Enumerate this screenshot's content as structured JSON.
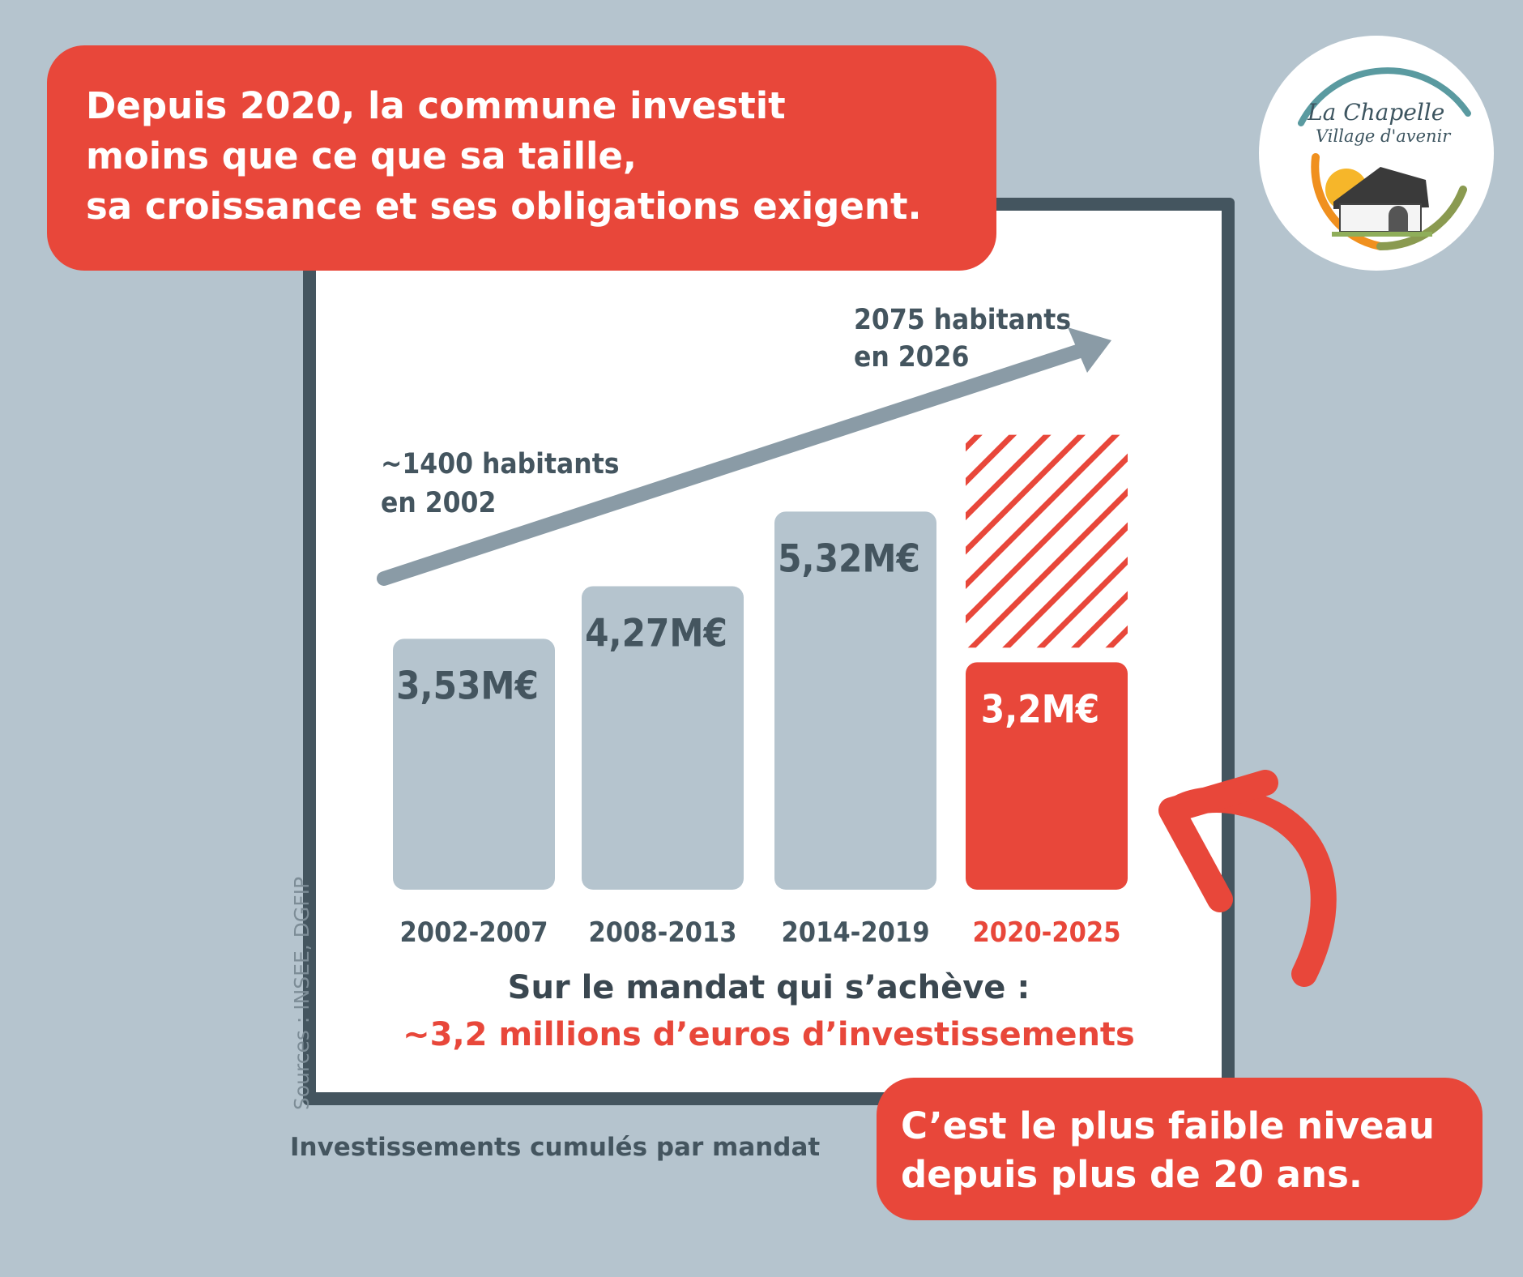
{
  "headline": {
    "lines": [
      "Depuis 2020, la commune investit",
      "moins que ce que sa taille,",
      "sa croissance et ses obligations exigent."
    ]
  },
  "logo": {
    "line1": "La Chapelle",
    "line2": "Village d'avenir"
  },
  "colors": {
    "accent": "#e8473a",
    "bar": "#b5c4ce",
    "frame": "#44555f",
    "text_dark": "#3a4750",
    "background": "#b5c4ce"
  },
  "chart_data": {
    "type": "bar",
    "title": "Investissements cumulés par mandat",
    "categories": [
      "2002-2007",
      "2008-2013",
      "2014-2019",
      "2020-2025"
    ],
    "values": [
      3.53,
      4.27,
      5.32,
      3.2
    ],
    "value_labels": [
      "3,53M€",
      "4,27M€",
      "5,32M€",
      "3,2M€"
    ],
    "unit": "M€",
    "highlight_index": 3,
    "expected_hatched_value": 6.4,
    "ylim": [
      0,
      7
    ],
    "trend": {
      "start_label": [
        "~1400 habitants",
        "en 2002"
      ],
      "end_label": [
        "2075 habitants",
        "en 2026"
      ],
      "start_value": 1400,
      "end_value": 2075
    }
  },
  "summary": {
    "line1": "Sur le mandat qui s’achève :",
    "line2": "~3,2 millions d’euros d’investissements"
  },
  "sources": "Sources : INSEE, DGFIP",
  "caption": "Investissements cumulés par mandat",
  "conclusion": {
    "lines": [
      "C’est le plus faible niveau",
      "depuis plus de 20 ans."
    ]
  }
}
